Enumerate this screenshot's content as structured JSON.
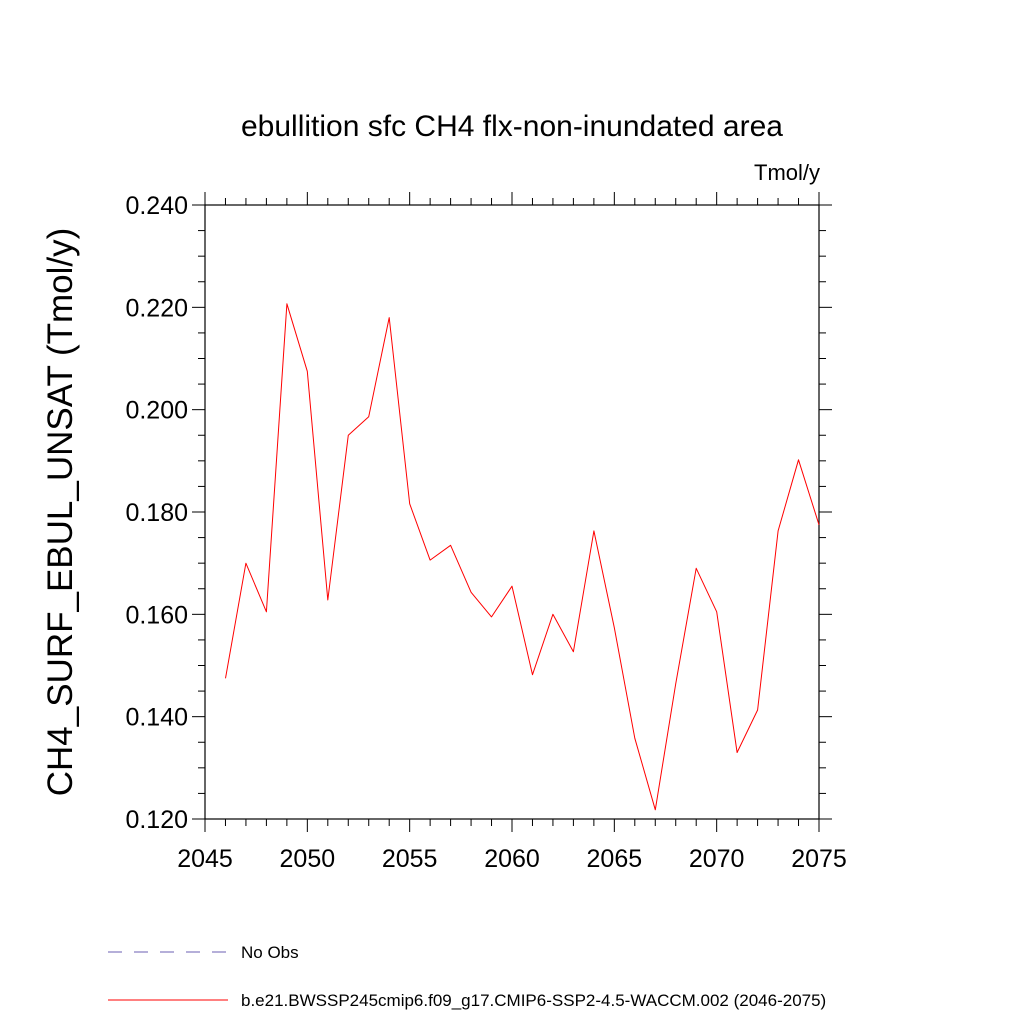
{
  "chart_data": {
    "type": "line",
    "title": "ebullition sfc CH4 flx-non-inundated area",
    "units_label": "Tmol/y",
    "xlabel": "",
    "ylabel": "CH4_SURF_EBUL_UNSAT  (Tmol/y)",
    "xlim": [
      2045,
      2075
    ],
    "ylim": [
      0.12,
      0.24
    ],
    "x_ticks": [
      2045,
      2050,
      2055,
      2060,
      2065,
      2070,
      2075
    ],
    "x_tick_labels": [
      "2045",
      "2050",
      "2055",
      "2060",
      "2065",
      "2070",
      "2075"
    ],
    "y_ticks": [
      0.12,
      0.14,
      0.16,
      0.18,
      0.2,
      0.22,
      0.24
    ],
    "y_tick_labels": [
      "0.120",
      "0.140",
      "0.160",
      "0.180",
      "0.200",
      "0.220",
      "0.240"
    ],
    "x_minor_step": 1,
    "y_minor_step": 0.005,
    "grid": false,
    "legend_position": "bottom",
    "series": [
      {
        "name": "b.e21.BWSSP245cmip6.f09_g17.CMIP6-SSP2-4.5-WACCM.002 (2046-2075)",
        "color": "#ff0000",
        "style": "solid",
        "x": [
          2046,
          2047,
          2048,
          2049,
          2050,
          2051,
          2052,
          2053,
          2054,
          2055,
          2056,
          2057,
          2058,
          2059,
          2060,
          2061,
          2062,
          2063,
          2064,
          2065,
          2066,
          2067,
          2068,
          2069,
          2070,
          2071,
          2072,
          2073,
          2074,
          2075
        ],
        "y": [
          0.1475,
          0.17,
          0.1605,
          0.2207,
          0.2075,
          0.1628,
          0.195,
          0.1986,
          0.218,
          0.1816,
          0.1706,
          0.1735,
          0.1643,
          0.1595,
          0.1655,
          0.1482,
          0.16,
          0.1527,
          0.1763,
          0.1574,
          0.1358,
          0.1218,
          0.1464,
          0.169,
          0.1605,
          0.133,
          0.1413,
          0.1763,
          0.1902,
          0.1775
        ]
      }
    ],
    "legend": [
      {
        "label": "No Obs",
        "color": "#6b5fb3",
        "style": "dashed"
      },
      {
        "label": "b.e21.BWSSP245cmip6.f09_g17.CMIP6-SSP2-4.5-WACCM.002 (2046-2075)",
        "color": "#ff0000",
        "style": "solid"
      }
    ]
  }
}
